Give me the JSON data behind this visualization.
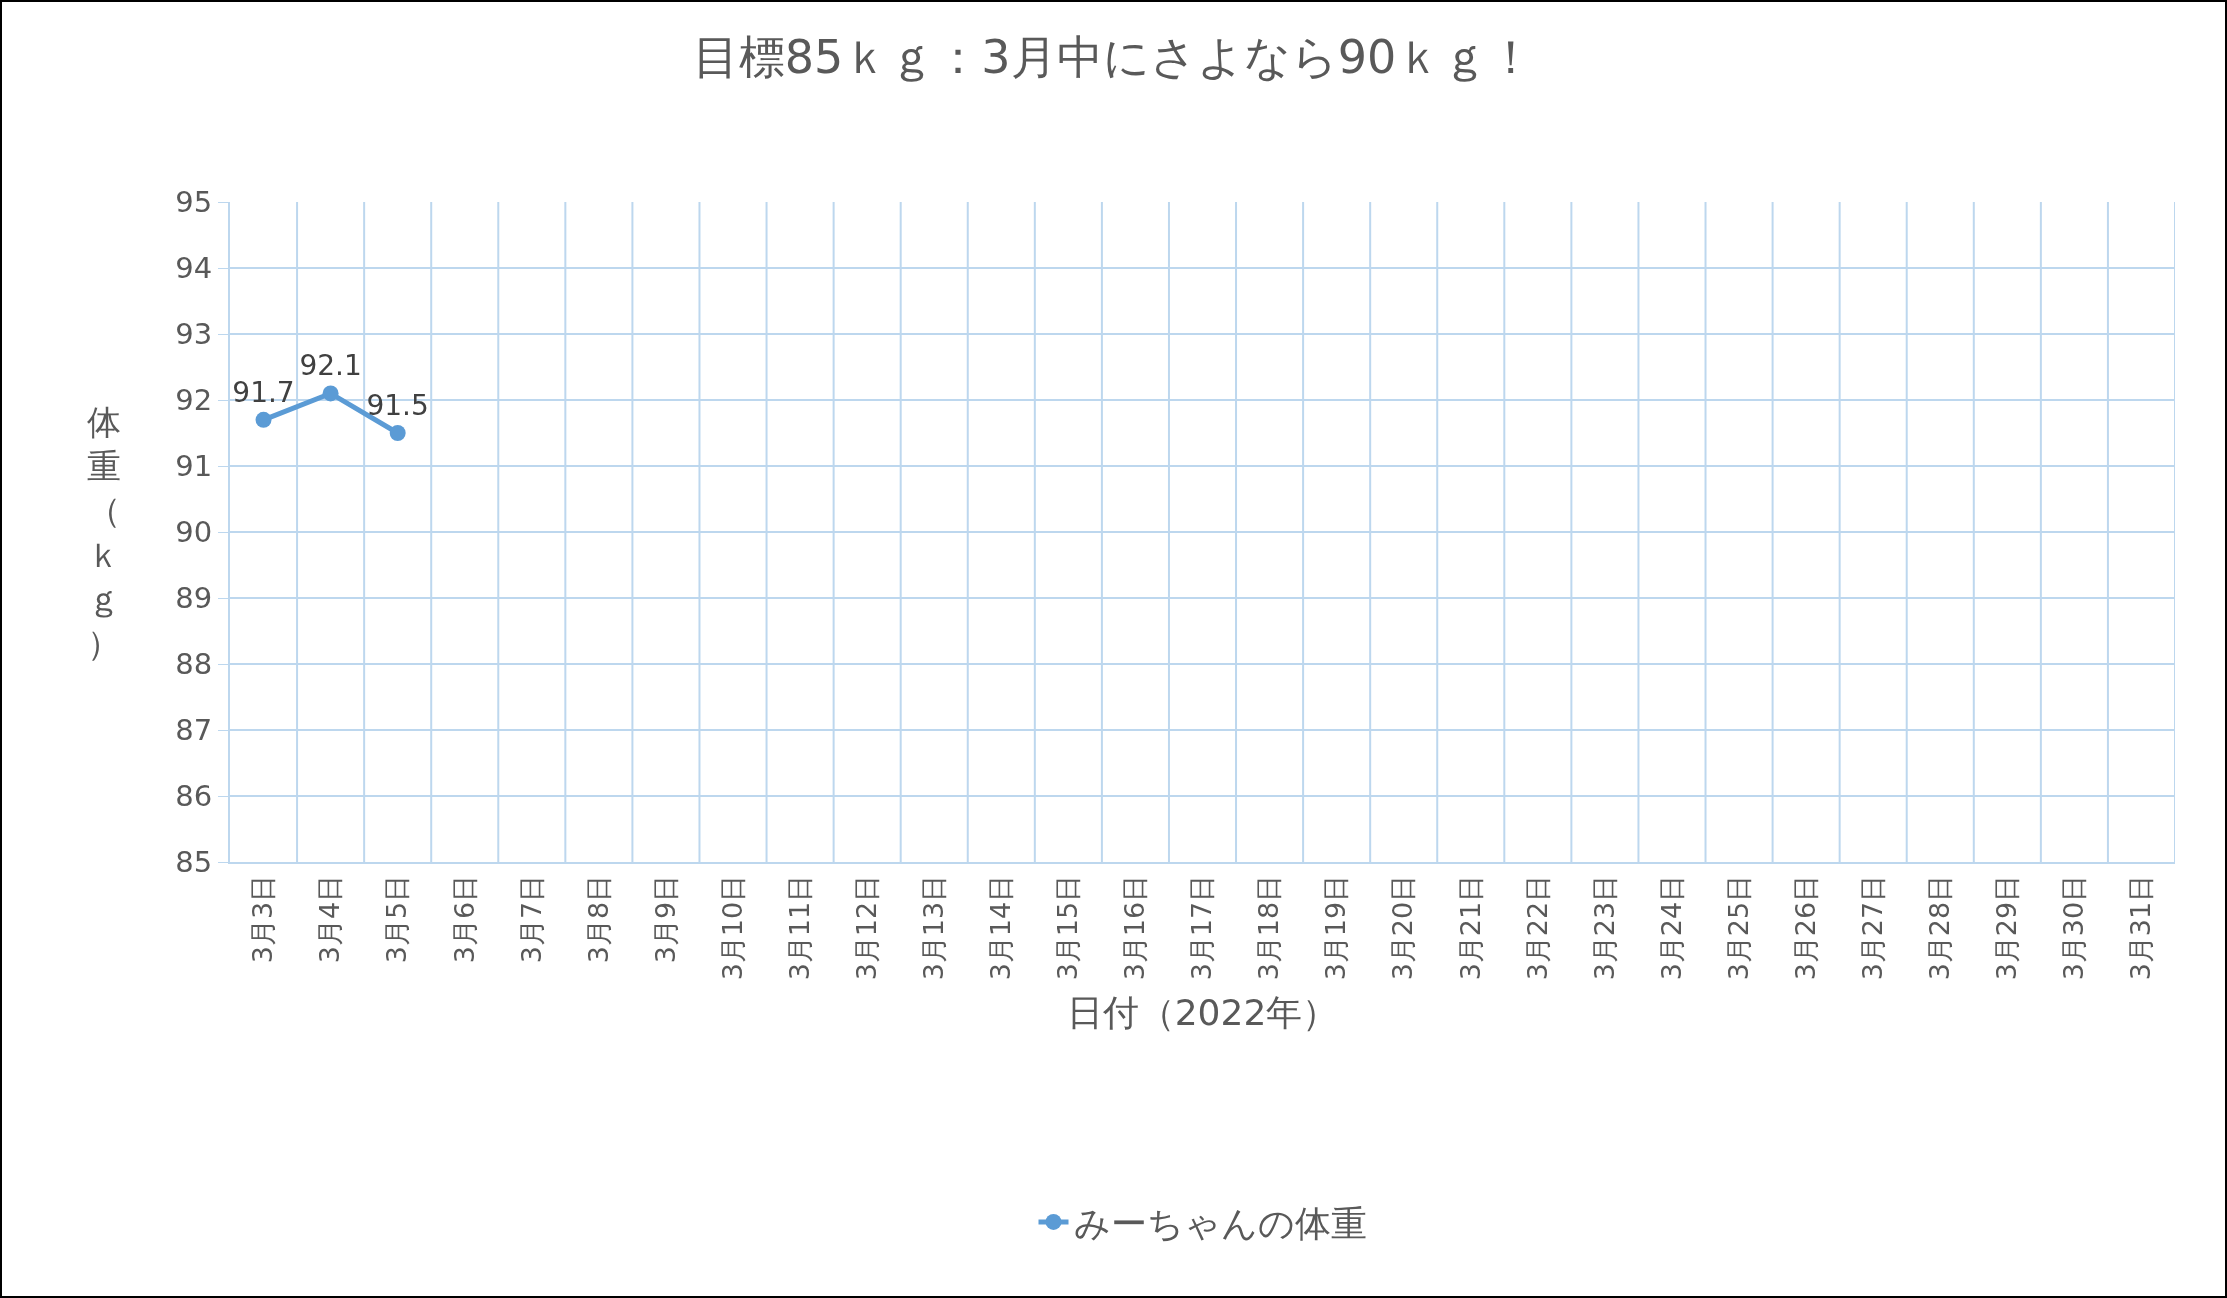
{
  "chart_data": {
    "type": "line",
    "title": "目標85ｋｇ：3月中にさよなら90ｋｇ！",
    "xlabel": "日付（2022年）",
    "ylabel": "体重（ｋｇ）",
    "categories": [
      "3月3日",
      "3月4日",
      "3月5日",
      "3月6日",
      "3月7日",
      "3月8日",
      "3月9日",
      "3月10日",
      "3月11日",
      "3月12日",
      "3月13日",
      "3月14日",
      "3月15日",
      "3月16日",
      "3月17日",
      "3月18日",
      "3月19日",
      "3月20日",
      "3月21日",
      "3月22日",
      "3月23日",
      "3月24日",
      "3月25日",
      "3月26日",
      "3月27日",
      "3月28日",
      "3月29日",
      "3月30日",
      "3月31日"
    ],
    "series": [
      {
        "name": "みーちゃんの体重",
        "color": "#5b9bd5",
        "values": [
          91.7,
          92.1,
          91.5,
          null,
          null,
          null,
          null,
          null,
          null,
          null,
          null,
          null,
          null,
          null,
          null,
          null,
          null,
          null,
          null,
          null,
          null,
          null,
          null,
          null,
          null,
          null,
          null,
          null,
          null
        ]
      }
    ],
    "ylim": [
      85,
      95
    ],
    "yticks": [
      85,
      86,
      87,
      88,
      89,
      90,
      91,
      92,
      93,
      94,
      95
    ],
    "grid": true,
    "legend": "bottom",
    "marker": "circle",
    "line_style": "solid",
    "data_labels": true
  }
}
